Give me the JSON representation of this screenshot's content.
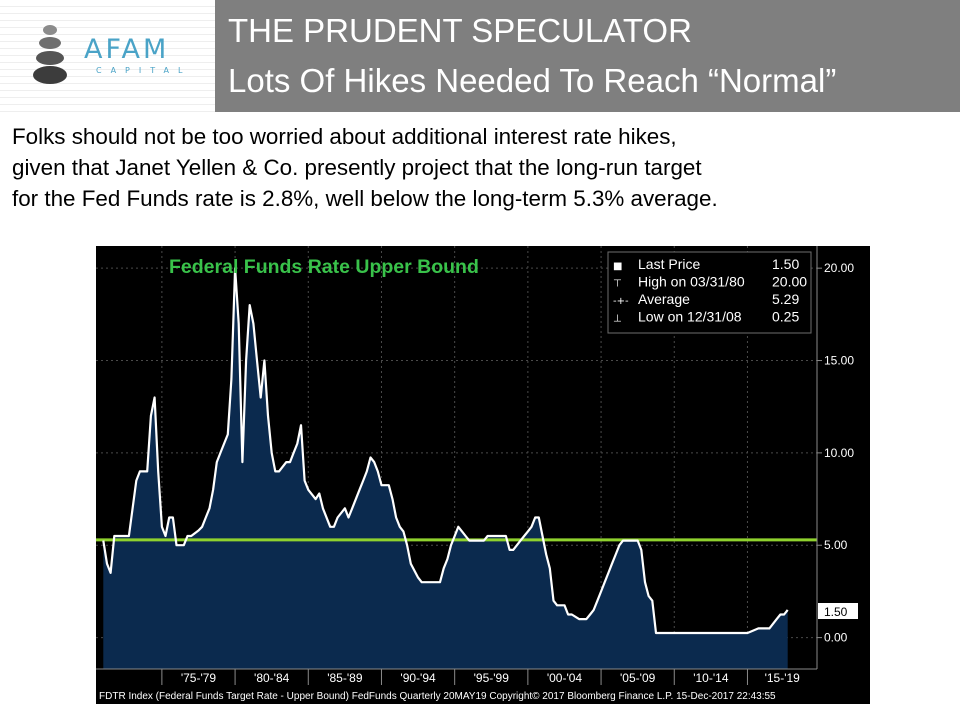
{
  "header": {
    "logo_text": "AFAM",
    "logo_subtext": "CAPITAL",
    "title_line1": "THE PRUDENT SPECULATOR",
    "title_line2": "Lots Of Hikes Needed To Reach “Normal”"
  },
  "intro": {
    "line1": "Folks should not be too worried about additional interest rate hikes,",
    "line2": "given that Janet Yellen & Co. presently project that the long-run target",
    "line3": "for the Fed Funds rate is 2.8%, well below the long-term 5.3% average."
  },
  "chart_data": {
    "type": "area",
    "title": "Federal Funds Rate Upper Bound",
    "colors": {
      "background": "#000000",
      "fill": "#0b2a4e",
      "line": "#ffffff",
      "average_line": "#8fd22e",
      "title": "#39c24a"
    },
    "x": [
      1971.0,
      1971.25,
      1971.5,
      1971.75,
      1972.0,
      1972.25,
      1972.5,
      1972.75,
      1973.0,
      1973.25,
      1973.5,
      1973.75,
      1974.0,
      1974.25,
      1974.5,
      1974.75,
      1975.0,
      1975.25,
      1975.5,
      1975.75,
      1976.0,
      1976.5,
      1976.75,
      1977.0,
      1977.5,
      1977.75,
      1978.0,
      1978.25,
      1978.5,
      1978.75,
      1979.0,
      1979.25,
      1979.5,
      1979.75,
      1980.0,
      1980.25,
      1980.5,
      1980.75,
      1981.0,
      1981.25,
      1981.5,
      1981.75,
      1982.0,
      1982.25,
      1982.5,
      1982.75,
      1983.0,
      1983.5,
      1983.75,
      1984.0,
      1984.25,
      1984.5,
      1984.75,
      1985.0,
      1985.5,
      1985.75,
      1986.0,
      1986.5,
      1986.75,
      1987.0,
      1987.5,
      1987.75,
      1988.0,
      1988.5,
      1988.75,
      1989.0,
      1989.25,
      1989.5,
      1989.75,
      1990.0,
      1990.25,
      1990.5,
      1990.75,
      1991.0,
      1991.25,
      1991.5,
      1991.75,
      1992.0,
      1992.5,
      1992.75,
      1993.0,
      1993.5,
      1994.0,
      1994.25,
      1994.5,
      1994.75,
      1995.0,
      1995.25,
      1995.5,
      1995.75,
      1996.0,
      1997.0,
      1997.25,
      1998.0,
      1998.5,
      1998.75,
      1999.0,
      1999.25,
      1999.5,
      1999.75,
      2000.0,
      2000.25,
      2000.5,
      2000.75,
      2001.0,
      2001.25,
      2001.5,
      2001.75,
      2002.0,
      2002.5,
      2002.75,
      2003.0,
      2003.5,
      2004.0,
      2004.25,
      2004.5,
      2004.75,
      2005.0,
      2005.25,
      2005.5,
      2005.75,
      2006.0,
      2006.25,
      2006.5,
      2007.0,
      2007.5,
      2007.75,
      2008.0,
      2008.25,
      2008.5,
      2008.75,
      2009.0,
      2010.0,
      2011.0,
      2012.0,
      2013.0,
      2014.0,
      2015.0,
      2015.75,
      2016.0,
      2016.5,
      2016.75,
      2017.0,
      2017.25,
      2017.5,
      2017.75
    ],
    "values": [
      5.25,
      4.0,
      3.5,
      5.5,
      5.5,
      5.5,
      5.5,
      5.5,
      7.0,
      8.5,
      9.0,
      9.0,
      9.0,
      12.0,
      13.0,
      9.0,
      6.0,
      5.5,
      6.5,
      6.5,
      5.0,
      5.0,
      5.5,
      5.5,
      5.8,
      6.0,
      6.5,
      7.0,
      8.0,
      9.5,
      10.0,
      10.5,
      11.0,
      14.0,
      20.0,
      17.0,
      9.5,
      15.0,
      18.0,
      17.0,
      15.0,
      13.0,
      15.0,
      12.0,
      10.0,
      9.0,
      9.0,
      9.5,
      9.5,
      10.0,
      10.5,
      11.5,
      8.5,
      8.0,
      7.5,
      7.8,
      7.0,
      6.0,
      6.0,
      6.5,
      7.0,
      6.5,
      7.0,
      8.0,
      8.5,
      9.0,
      9.75,
      9.5,
      9.0,
      8.25,
      8.25,
      8.25,
      7.5,
      6.5,
      6.0,
      5.75,
      5.0,
      4.0,
      3.25,
      3.0,
      3.0,
      3.0,
      3.0,
      3.75,
      4.25,
      5.0,
      5.5,
      6.0,
      5.75,
      5.5,
      5.25,
      5.25,
      5.5,
      5.5,
      5.5,
      4.75,
      4.75,
      5.0,
      5.25,
      5.5,
      5.75,
      6.0,
      6.5,
      6.5,
      5.5,
      4.5,
      3.75,
      2.0,
      1.75,
      1.75,
      1.25,
      1.25,
      1.0,
      1.0,
      1.25,
      1.5,
      2.0,
      2.5,
      3.0,
      3.5,
      4.0,
      4.5,
      5.0,
      5.25,
      5.25,
      5.25,
      4.75,
      3.0,
      2.25,
      2.0,
      0.25,
      0.25,
      0.25,
      0.25,
      0.25,
      0.25,
      0.25,
      0.25,
      0.5,
      0.5,
      0.5,
      0.75,
      1.0,
      1.25,
      1.25,
      1.5
    ],
    "average": 5.29,
    "ylim": [
      -1.7,
      21.2
    ],
    "xlim": [
      1970.5,
      2019.75
    ],
    "y_ticks": [
      0,
      5,
      10,
      15,
      20
    ],
    "y_tick_labels": [
      "0.00",
      "5.00",
      "10.00",
      "15.00",
      "20.00"
    ],
    "x_tick_labels": [
      "'75-'79",
      "'80-'84",
      "'85-'89",
      "'90-'94",
      "'95-'99",
      "'00-'04",
      "'05-'09",
      "'10-'14",
      "'15-'19"
    ],
    "x_group_bounds": [
      1975,
      1980,
      1985,
      1990,
      1995,
      2000,
      2005,
      2010,
      2015,
      2020
    ],
    "last_value_label": "1.50",
    "legend_position": "top-right",
    "legend": [
      {
        "marker": "■",
        "name": "Last Price",
        "value": "1.50"
      },
      {
        "marker": "⊤",
        "name": "High on 03/31/80",
        "value": "20.00"
      },
      {
        "marker": "-+-",
        "name": "Average",
        "value": "5.29"
      },
      {
        "marker": "⊥",
        "name": "Low on 12/31/08",
        "value": "0.25"
      }
    ],
    "footer": "FDTR Index (Federal Funds Target Rate - Upper Bound) FedFunds  Quarterly 20MAY19 Copyright© 2017 Bloomberg Finance L.P. 15-Dec-2017  22:43:55"
  }
}
